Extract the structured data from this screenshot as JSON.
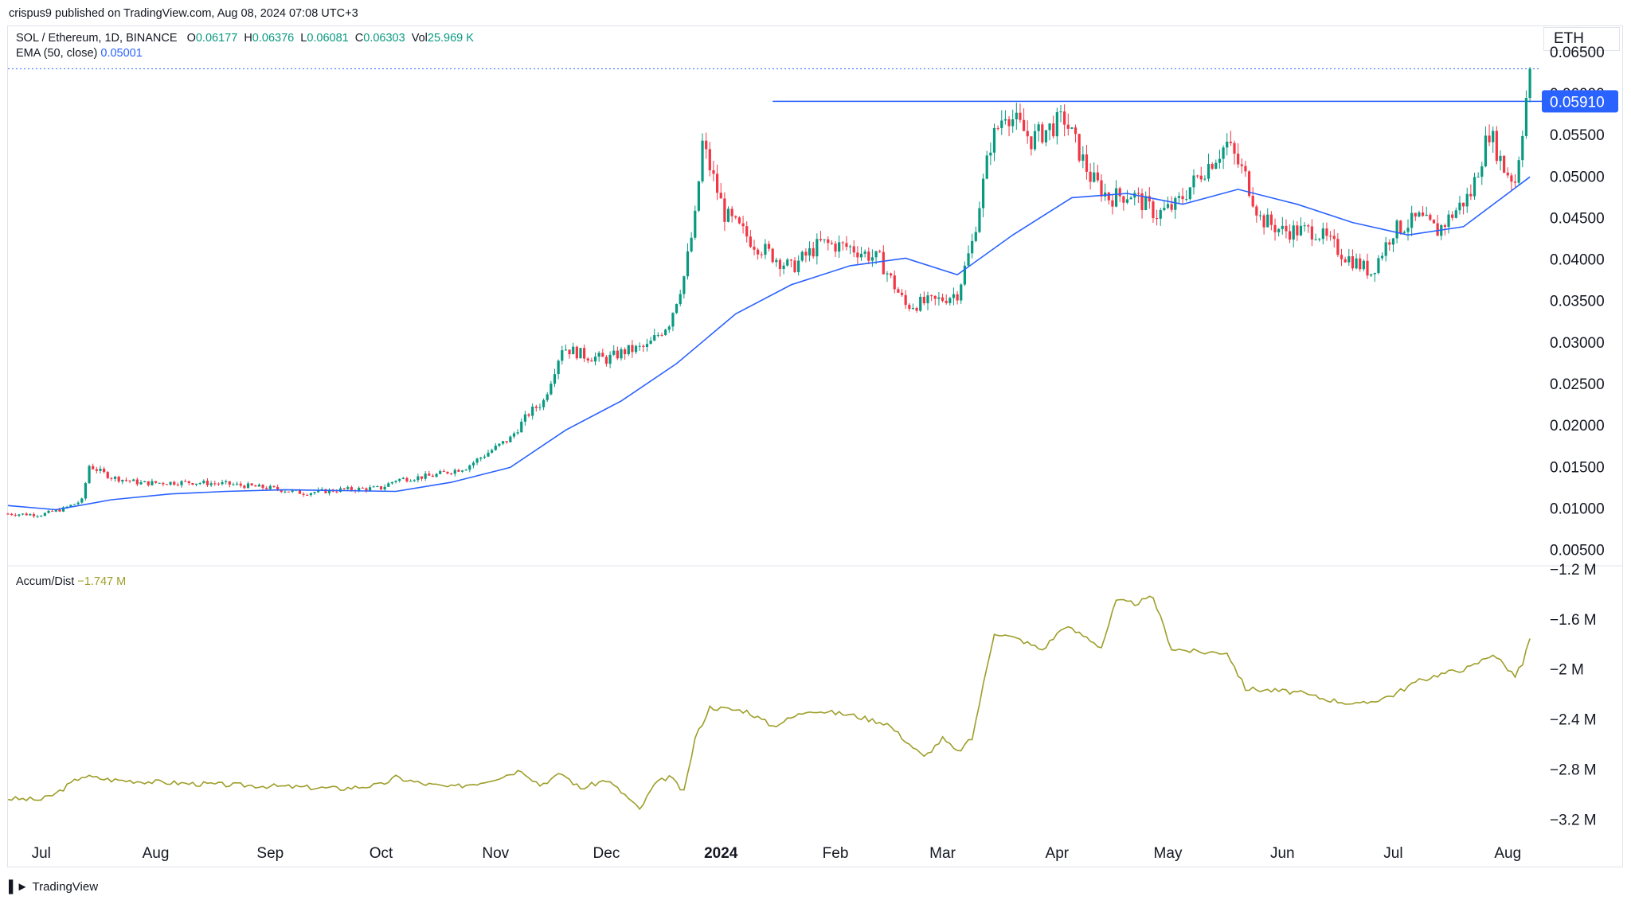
{
  "header": {
    "publisher": "crispus9 published on TradingView.com, Aug 08, 2024 07:08 UTC+3"
  },
  "legend": {
    "symbol": "SOL / Ethereum, 1D, BINANCE",
    "o_label": "O",
    "o": "0.06177",
    "h_label": "H",
    "h": "0.06376",
    "l_label": "L",
    "l": "0.06081",
    "c_label": "C",
    "c": "0.06303",
    "vol_label": "Vol",
    "vol": "25.969 K",
    "ema_label": "EMA (50, close)",
    "ema_value": "0.05001",
    "ad_label": "Accum/Dist",
    "ad_value": "−1.747 M"
  },
  "currency": "ETH",
  "footer": {
    "brand": "TradingView"
  },
  "colors": {
    "up": "#089981",
    "down": "#f23645",
    "ema": "#2962ff",
    "ad": "#9e9e2a",
    "resistance": "#2962ff",
    "grid_border": "#e0e3eb"
  },
  "chart_data": [
    {
      "type": "candlestick",
      "title": "SOL / Ethereum, 1D, BINANCE",
      "y_axis": {
        "min": 0.004,
        "max": 0.067,
        "ticks": [
          "0.06500",
          "0.06000",
          "0.05500",
          "0.05000",
          "0.04500",
          "0.04000",
          "0.03500",
          "0.03000",
          "0.02500",
          "0.02000",
          "0.01500",
          "0.01000",
          "0.00500"
        ]
      },
      "x_ticks": [
        "Jul",
        "Aug",
        "Sep",
        "Oct",
        "Nov",
        "Dec",
        "2024",
        "Feb",
        "Mar",
        "Apr",
        "May",
        "Jun",
        "Jul",
        "Aug"
      ],
      "x_range": [
        "2023-06-22",
        "2024-08-10"
      ],
      "last_close": 0.06303,
      "resistance": {
        "value": 0.0591,
        "label": "0.05910",
        "from": "2024-01-15"
      },
      "price_path": [
        [
          "2023-06-22",
          0.0094
        ],
        [
          "2023-07-01",
          0.0093
        ],
        [
          "2023-07-07",
          0.01
        ],
        [
          "2023-07-12",
          0.011
        ],
        [
          "2023-07-14",
          0.0152
        ],
        [
          "2023-07-20",
          0.0138
        ],
        [
          "2023-07-28",
          0.0131
        ],
        [
          "2023-08-10",
          0.0132
        ],
        [
          "2023-08-20",
          0.013
        ],
        [
          "2023-09-01",
          0.0125
        ],
        [
          "2023-09-10",
          0.0119
        ],
        [
          "2023-09-20",
          0.0123
        ],
        [
          "2023-10-01",
          0.0125
        ],
        [
          "2023-10-05",
          0.0135
        ],
        [
          "2023-10-15",
          0.014
        ],
        [
          "2023-10-24",
          0.015
        ],
        [
          "2023-10-30",
          0.0168
        ],
        [
          "2023-11-05",
          0.0185
        ],
        [
          "2023-11-10",
          0.0215
        ],
        [
          "2023-11-14",
          0.023
        ],
        [
          "2023-11-19",
          0.0295
        ],
        [
          "2023-11-25",
          0.0285
        ],
        [
          "2023-12-01",
          0.028
        ],
        [
          "2023-12-06",
          0.029
        ],
        [
          "2023-12-12",
          0.0295
        ],
        [
          "2023-12-18",
          0.0325
        ],
        [
          "2023-12-22",
          0.038
        ],
        [
          "2023-12-25",
          0.045
        ],
        [
          "2023-12-27",
          0.054
        ],
        [
          "2024-01-02",
          0.0455
        ],
        [
          "2024-01-10",
          0.042
        ],
        [
          "2024-01-20",
          0.039
        ],
        [
          "2024-01-28",
          0.042
        ],
        [
          "2024-02-05",
          0.0415
        ],
        [
          "2024-02-13",
          0.04
        ],
        [
          "2024-02-20",
          0.0345
        ],
        [
          "2024-02-28",
          0.035
        ],
        [
          "2024-03-05",
          0.036
        ],
        [
          "2024-03-09",
          0.042
        ],
        [
          "2024-03-14",
          0.054
        ],
        [
          "2024-03-18",
          0.058
        ],
        [
          "2024-03-25",
          0.0545
        ],
        [
          "2024-04-03",
          0.057
        ],
        [
          "2024-04-10",
          0.05
        ],
        [
          "2024-04-15",
          0.0475
        ],
        [
          "2024-04-21",
          0.048
        ],
        [
          "2024-04-28",
          0.0455
        ],
        [
          "2024-05-03",
          0.0465
        ],
        [
          "2024-05-10",
          0.0505
        ],
        [
          "2024-05-17",
          0.054
        ],
        [
          "2024-05-22",
          0.05
        ],
        [
          "2024-05-26",
          0.045
        ],
        [
          "2024-06-01",
          0.0435
        ],
        [
          "2024-06-10",
          0.0435
        ],
        [
          "2024-06-18",
          0.0405
        ],
        [
          "2024-06-25",
          0.0385
        ],
        [
          "2024-07-01",
          0.0435
        ],
        [
          "2024-07-08",
          0.045
        ],
        [
          "2024-07-13",
          0.0435
        ],
        [
          "2024-07-22",
          0.048
        ],
        [
          "2024-07-27",
          0.0555
        ],
        [
          "2024-07-31",
          0.051
        ],
        [
          "2024-08-03",
          0.0495
        ],
        [
          "2024-08-05",
          0.056
        ],
        [
          "2024-08-07",
          0.063
        ]
      ],
      "ema_series": [
        [
          "2023-06-22",
          0.0104
        ],
        [
          "2023-07-05",
          0.0099
        ],
        [
          "2023-07-20",
          0.0111
        ],
        [
          "2023-08-05",
          0.0118
        ],
        [
          "2023-08-20",
          0.0121
        ],
        [
          "2023-09-05",
          0.0123
        ],
        [
          "2023-09-20",
          0.0122
        ],
        [
          "2023-10-05",
          0.0121
        ],
        [
          "2023-10-20",
          0.0132
        ],
        [
          "2023-11-05",
          0.015
        ],
        [
          "2023-11-20",
          0.0195
        ],
        [
          "2023-12-05",
          0.023
        ],
        [
          "2023-12-20",
          0.0275
        ],
        [
          "2024-01-05",
          0.0335
        ],
        [
          "2024-01-20",
          0.037
        ],
        [
          "2024-02-05",
          0.0393
        ],
        [
          "2024-02-20",
          0.0402
        ],
        [
          "2024-03-05",
          0.0382
        ],
        [
          "2024-03-20",
          0.043
        ],
        [
          "2024-04-05",
          0.0475
        ],
        [
          "2024-04-20",
          0.048
        ],
        [
          "2024-05-05",
          0.0467
        ],
        [
          "2024-05-20",
          0.0485
        ],
        [
          "2024-06-05",
          0.0467
        ],
        [
          "2024-06-20",
          0.0445
        ],
        [
          "2024-07-05",
          0.043
        ],
        [
          "2024-07-20",
          0.044
        ],
        [
          "2024-08-07",
          0.05
        ]
      ]
    },
    {
      "type": "line",
      "title": "Accum/Dist",
      "y_axis": {
        "min": -3.3,
        "max": -1.2,
        "ticks": [
          "−1.2 M",
          "−1.6 M",
          "−2 M",
          "−2.4 M",
          "−2.8 M",
          "−3.2 M"
        ]
      },
      "x_range": [
        "2023-06-22",
        "2024-08-10"
      ],
      "series": [
        {
          "values": [
            [
              "2023-06-22",
              -3.03
            ],
            [
              "2023-07-01",
              -3.04
            ],
            [
              "2023-07-05",
              -2.99
            ],
            [
              "2023-07-12",
              -2.85
            ],
            [
              "2023-07-20",
              -2.88
            ],
            [
              "2023-08-10",
              -2.91
            ],
            [
              "2023-09-01",
              -2.93
            ],
            [
              "2023-09-20",
              -2.95
            ],
            [
              "2023-10-01",
              -2.92
            ],
            [
              "2023-10-05",
              -2.86
            ],
            [
              "2023-10-12",
              -2.91
            ],
            [
              "2023-10-20",
              -2.94
            ],
            [
              "2023-10-28",
              -2.9
            ],
            [
              "2023-11-03",
              -2.85
            ],
            [
              "2023-11-08",
              -2.8
            ],
            [
              "2023-11-13",
              -2.92
            ],
            [
              "2023-11-19",
              -2.83
            ],
            [
              "2023-11-24",
              -2.95
            ],
            [
              "2023-12-01",
              -2.88
            ],
            [
              "2023-12-06",
              -3.0
            ],
            [
              "2023-12-10",
              -3.12
            ],
            [
              "2023-12-14",
              -2.92
            ],
            [
              "2023-12-18",
              -2.85
            ],
            [
              "2023-12-22",
              -2.98
            ],
            [
              "2023-12-25",
              -2.55
            ],
            [
              "2023-12-29",
              -2.3
            ],
            [
              "2024-01-08",
              -2.33
            ],
            [
              "2024-01-15",
              -2.45
            ],
            [
              "2024-01-25",
              -2.32
            ],
            [
              "2024-02-05",
              -2.36
            ],
            [
              "2024-02-15",
              -2.43
            ],
            [
              "2024-02-25",
              -2.7
            ],
            [
              "2024-03-01",
              -2.55
            ],
            [
              "2024-03-05",
              -2.66
            ],
            [
              "2024-03-09",
              -2.55
            ],
            [
              "2024-03-15",
              -1.7
            ],
            [
              "2024-03-22",
              -1.76
            ],
            [
              "2024-03-28",
              -1.84
            ],
            [
              "2024-04-03",
              -1.65
            ],
            [
              "2024-04-09",
              -1.74
            ],
            [
              "2024-04-13",
              -1.82
            ],
            [
              "2024-04-17",
              -1.45
            ],
            [
              "2024-04-22",
              -1.47
            ],
            [
              "2024-04-27",
              -1.42
            ],
            [
              "2024-05-02",
              -1.83
            ],
            [
              "2024-05-10",
              -1.86
            ],
            [
              "2024-05-17",
              -1.86
            ],
            [
              "2024-05-22",
              -2.15
            ],
            [
              "2024-06-05",
              -2.18
            ],
            [
              "2024-06-12",
              -2.23
            ],
            [
              "2024-06-22",
              -2.28
            ],
            [
              "2024-07-01",
              -2.2
            ],
            [
              "2024-07-07",
              -2.1
            ],
            [
              "2024-07-13",
              -2.04
            ],
            [
              "2024-07-22",
              -1.98
            ],
            [
              "2024-07-28",
              -1.87
            ],
            [
              "2024-08-03",
              -2.05
            ],
            [
              "2024-08-05",
              -1.95
            ],
            [
              "2024-08-07",
              -1.75
            ]
          ]
        }
      ]
    }
  ]
}
